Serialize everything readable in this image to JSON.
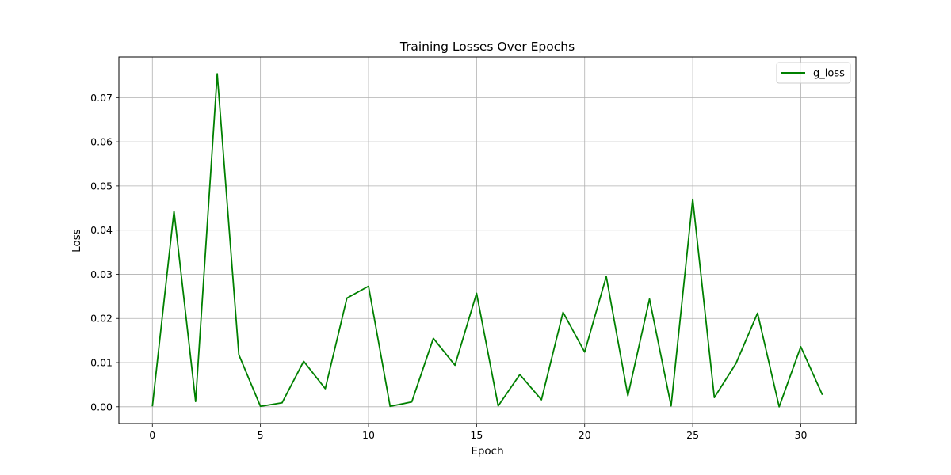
{
  "chart_data": {
    "type": "line",
    "title": "Training Losses Over Epochs",
    "xlabel": "Epoch",
    "ylabel": "Loss",
    "xlim": [
      -1.55,
      32.55
    ],
    "ylim": [
      -0.0038,
      0.0792
    ],
    "xticks": [
      0,
      5,
      10,
      15,
      20,
      25,
      30
    ],
    "yticks": [
      0.0,
      0.01,
      0.02,
      0.03,
      0.04,
      0.05,
      0.06,
      0.07
    ],
    "ytick_labels": [
      "0.00",
      "0.01",
      "0.02",
      "0.03",
      "0.04",
      "0.05",
      "0.06",
      "0.07"
    ],
    "grid": true,
    "legend_position": "top-right",
    "series": [
      {
        "name": "g_loss",
        "color": "#008000",
        "x": [
          0,
          1,
          2,
          3,
          4,
          5,
          6,
          7,
          8,
          9,
          10,
          11,
          12,
          13,
          14,
          15,
          16,
          17,
          18,
          19,
          20,
          21,
          22,
          23,
          24,
          25,
          26,
          27,
          28,
          29,
          30,
          31
        ],
        "y": [
          0.0001,
          0.0443,
          0.0012,
          0.0754,
          0.0118,
          0.0001,
          0.0009,
          0.0103,
          0.0041,
          0.0246,
          0.0273,
          0.0001,
          0.0011,
          0.0155,
          0.0094,
          0.0257,
          0.0002,
          0.0073,
          0.0016,
          0.0214,
          0.0124,
          0.0295,
          0.0025,
          0.0244,
          0.0002,
          0.047,
          0.0021,
          0.0098,
          0.0212,
          0.0,
          0.0136,
          0.0027
        ]
      }
    ]
  }
}
